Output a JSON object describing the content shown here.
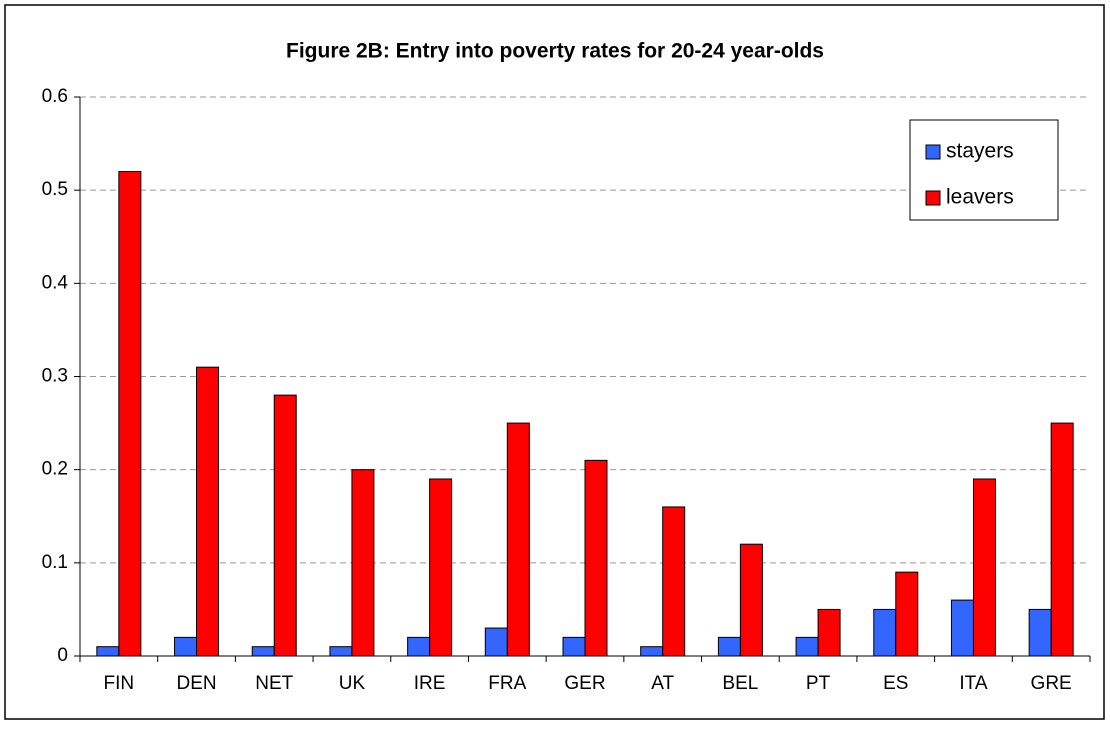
{
  "chart_data": {
    "type": "bar",
    "title": "Figure 2B: Entry into poverty rates for 20-24 year-olds",
    "categories": [
      "FIN",
      "DEN",
      "NET",
      "UK",
      "IRE",
      "FRA",
      "GER",
      "AT",
      "BEL",
      "PT",
      "ES",
      "ITA",
      "GRE"
    ],
    "series": [
      {
        "name": "stayers",
        "color": "#3366ff",
        "values": [
          0.01,
          0.02,
          0.01,
          0.01,
          0.02,
          0.03,
          0.02,
          0.01,
          0.02,
          0.02,
          0.05,
          0.06,
          0.05
        ]
      },
      {
        "name": "leavers",
        "color": "#ff0000",
        "values": [
          0.52,
          0.31,
          0.28,
          0.2,
          0.19,
          0.25,
          0.21,
          0.16,
          0.12,
          0.05,
          0.09,
          0.19,
          0.25
        ]
      }
    ],
    "ylim": [
      0,
      0.6
    ],
    "yticks": [
      0,
      0.1,
      0.2,
      0.3,
      0.4,
      0.5,
      0.6
    ],
    "grid": true,
    "legend": "top-right"
  }
}
